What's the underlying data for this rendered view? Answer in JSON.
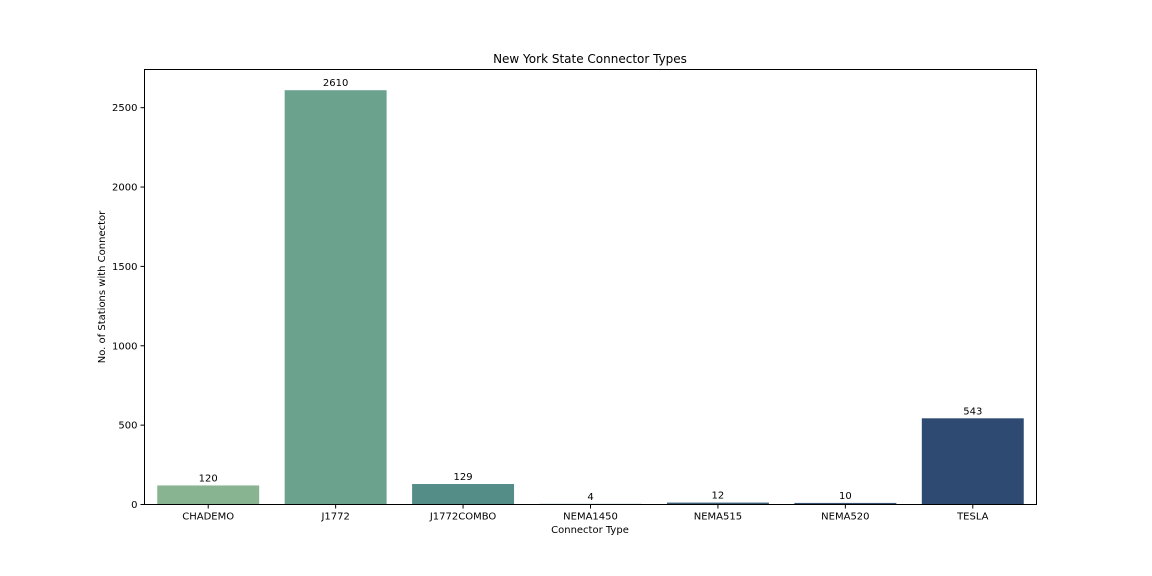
{
  "chart_data": {
    "type": "bar",
    "title": "New York State Connector Types",
    "xlabel": "Connector Type",
    "ylabel": "No. of Stations with Connector",
    "categories": [
      "CHADEMO",
      "J1772",
      "J1772COMBO",
      "NEMA1450",
      "NEMA515",
      "NEMA520",
      "TESLA"
    ],
    "values": [
      120,
      2610,
      129,
      4,
      12,
      10,
      543
    ],
    "colors": [
      "#89b491",
      "#6aa28e",
      "#548c87",
      "#457282",
      "#3e617c",
      "#385475",
      "#2e4a72"
    ],
    "yticks": [
      0,
      500,
      1000,
      1500,
      2000,
      2500
    ],
    "ylim": [
      0,
      2740.5
    ],
    "grid": false,
    "data_labels": true
  }
}
